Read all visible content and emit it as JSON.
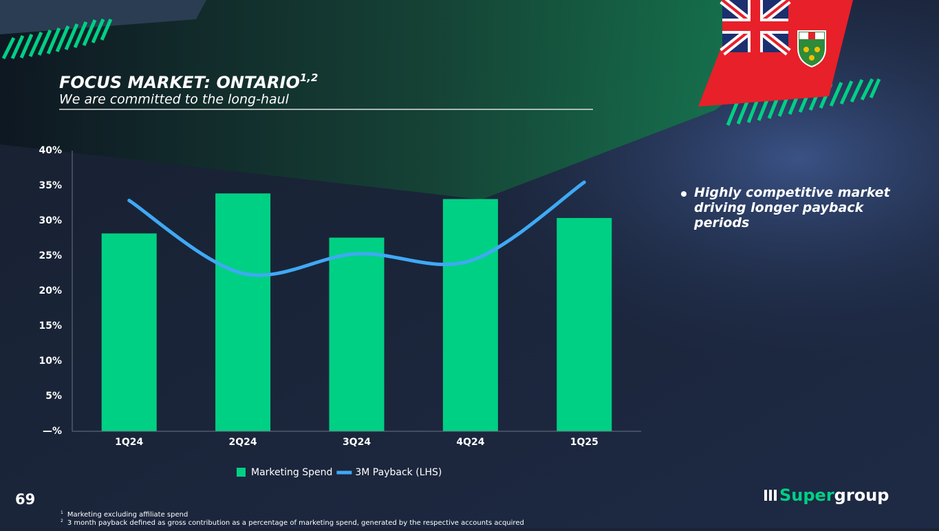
{
  "slide": {
    "title": "FOCUS MARKET: ONTARIO",
    "title_sup": "1,2",
    "subtitle": "We are committed to the long-haul",
    "bullet": "Highly competitive market driving longer payback periods",
    "page_number": "69",
    "footnotes": [
      {
        "mark": "1",
        "text": "Marketing excluding affiliate spend"
      },
      {
        "mark": "2",
        "text": "3 month payback defined as gross contribution as a percentage of marketing spend, generated by the respective accounts acquired"
      }
    ],
    "logo": [
      "Super",
      "group"
    ]
  },
  "chart_data": {
    "type": "combo",
    "categories": [
      "1Q24",
      "2Q24",
      "3Q24",
      "4Q24",
      "1Q25"
    ],
    "series": [
      {
        "name": "Marketing Spend",
        "type": "bar",
        "color": "#00d084",
        "values": [
          28.2,
          33.9,
          27.6,
          33.1,
          30.4
        ]
      },
      {
        "name": "3M Payback (LHS)",
        "type": "line",
        "color": "#3fa9f5",
        "values": [
          32.9,
          22.5,
          25.3,
          24.3,
          35.5
        ]
      }
    ],
    "ylim": [
      0,
      40
    ],
    "yticks": [
      {
        "value": 0,
        "label": "—%"
      },
      {
        "value": 5,
        "label": "5%"
      },
      {
        "value": 10,
        "label": "10%"
      },
      {
        "value": 15,
        "label": "15%"
      },
      {
        "value": 20,
        "label": "20%"
      },
      {
        "value": 25,
        "label": "25%"
      },
      {
        "value": 30,
        "label": "30%"
      },
      {
        "value": 35,
        "label": "35%"
      },
      {
        "value": 40,
        "label": "40%"
      }
    ],
    "grid": false,
    "legend": "bottom"
  }
}
